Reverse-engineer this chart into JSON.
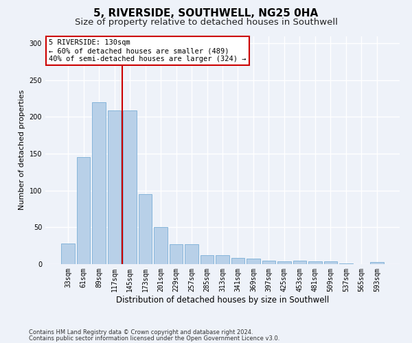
{
  "title": "5, RIVERSIDE, SOUTHWELL, NG25 0HA",
  "subtitle": "Size of property relative to detached houses in Southwell",
  "xlabel": "Distribution of detached houses by size in Southwell",
  "ylabel": "Number of detached properties",
  "categories": [
    "33sqm",
    "61sqm",
    "89sqm",
    "117sqm",
    "145sqm",
    "173sqm",
    "201sqm",
    "229sqm",
    "257sqm",
    "285sqm",
    "313sqm",
    "341sqm",
    "369sqm",
    "397sqm",
    "425sqm",
    "453sqm",
    "481sqm",
    "509sqm",
    "537sqm",
    "565sqm",
    "593sqm"
  ],
  "values": [
    28,
    145,
    220,
    209,
    209,
    95,
    50,
    27,
    27,
    12,
    12,
    8,
    7,
    5,
    4,
    5,
    4,
    4,
    1,
    0,
    3
  ],
  "bar_color": "#b8d0e8",
  "bar_edgecolor": "#7aaed6",
  "vline_x": 3.5,
  "vline_color": "#cc0000",
  "annotation_text": "5 RIVERSIDE: 130sqm\n← 60% of detached houses are smaller (489)\n40% of semi-detached houses are larger (324) →",
  "annotation_box_color": "#cc0000",
  "ylim": [
    0,
    310
  ],
  "yticks": [
    0,
    50,
    100,
    150,
    200,
    250,
    300
  ],
  "footer_line1": "Contains HM Land Registry data © Crown copyright and database right 2024.",
  "footer_line2": "Contains public sector information licensed under the Open Government Licence v3.0.",
  "background_color": "#eef2f9",
  "plot_background": "#eef2f9",
  "grid_color": "#ffffff",
  "title_fontsize": 11,
  "subtitle_fontsize": 9.5,
  "xlabel_fontsize": 8.5,
  "ylabel_fontsize": 8,
  "tick_fontsize": 7,
  "annot_fontsize": 7.5,
  "footer_fontsize": 6
}
